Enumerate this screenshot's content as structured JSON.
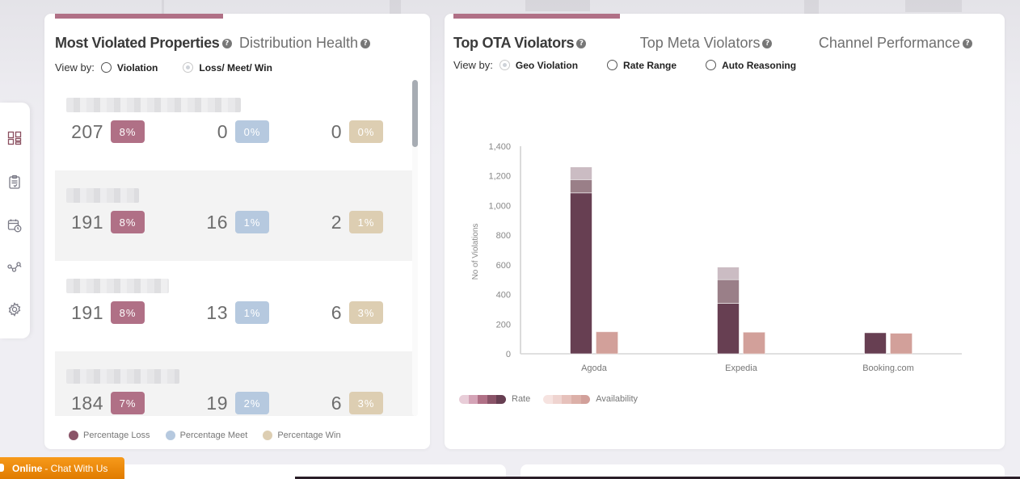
{
  "sidebar": {
    "items": [
      {
        "icon": "dashboard-icon",
        "active": true
      },
      {
        "icon": "clipboard-icon",
        "active": false
      },
      {
        "icon": "calendar-clock-icon",
        "active": false
      },
      {
        "icon": "workflow-icon",
        "active": false
      },
      {
        "icon": "gear-icon",
        "active": false
      }
    ]
  },
  "left_card": {
    "tabs": [
      {
        "label": "Most Violated Properties",
        "active": true,
        "help": "?"
      },
      {
        "label": "Distribution Health",
        "active": false,
        "help": "?"
      }
    ],
    "view_by": {
      "label": "View by:",
      "options": [
        {
          "label": "Violation",
          "checked": false
        },
        {
          "label": "Loss/ Meet/ Win",
          "checked": true
        }
      ]
    },
    "properties": [
      {
        "name": "",
        "loss": {
          "value": "207",
          "pct": "8%"
        },
        "meet": {
          "value": "0",
          "pct": "0%"
        },
        "win": {
          "value": "0",
          "pct": "0%"
        }
      },
      {
        "name": "",
        "loss": {
          "value": "191",
          "pct": "8%"
        },
        "meet": {
          "value": "16",
          "pct": "1%"
        },
        "win": {
          "value": "2",
          "pct": "1%"
        }
      },
      {
        "name": "",
        "loss": {
          "value": "191",
          "pct": "8%"
        },
        "meet": {
          "value": "13",
          "pct": "1%"
        },
        "win": {
          "value": "6",
          "pct": "3%"
        }
      },
      {
        "name": "",
        "loss": {
          "value": "184",
          "pct": "7%"
        },
        "meet": {
          "value": "19",
          "pct": "2%"
        },
        "win": {
          "value": "6",
          "pct": "3%"
        }
      }
    ],
    "legend": [
      {
        "label": "Percentage Loss",
        "color": "#8a5468"
      },
      {
        "label": "Percentage Meet",
        "color": "#b6c9df"
      },
      {
        "label": "Percentage Win",
        "color": "#ddceb2"
      }
    ]
  },
  "right_card": {
    "tabs": [
      {
        "label": "Top OTA Violators",
        "active": true,
        "help": "?"
      },
      {
        "label": "Top Meta Violators",
        "active": false,
        "help": "?"
      },
      {
        "label": "Channel Performance",
        "active": false,
        "help": "?"
      }
    ],
    "view_by": {
      "label": "View by:",
      "options": [
        {
          "label": "Geo Violation",
          "checked": true
        },
        {
          "label": "Rate Range",
          "checked": false
        },
        {
          "label": "Auto Reasoning",
          "checked": false
        }
      ]
    },
    "legend": [
      {
        "label": "Rate",
        "colors": [
          "#e8cdd8",
          "#d4a3b6",
          "#b07086",
          "#8a5468",
          "#673f52"
        ]
      },
      {
        "label": "Availability",
        "colors": [
          "#f6e3e0",
          "#efd4d0",
          "#e6c1bb",
          "#dcb0a8",
          "#d2a09a"
        ]
      }
    ]
  },
  "chart_data": {
    "type": "bar",
    "title": "",
    "xlabel": "",
    "ylabel": "No of Violations",
    "ylim": [
      0,
      1400
    ],
    "yticks": [
      0,
      200,
      400,
      600,
      800,
      1000,
      1200,
      1400
    ],
    "ytick_labels": [
      "0",
      "200",
      "400",
      "600",
      "800",
      "1,000",
      "1,200",
      "1,400"
    ],
    "categories": [
      "Agoda",
      "Expedia",
      "Booking.com"
    ],
    "grid": false,
    "legend_position": "bottom-left",
    "series": [
      {
        "name": "Rate",
        "stack": "rate",
        "segment": "level-1",
        "color": "#673f52",
        "values": [
          1085,
          340,
          142
        ]
      },
      {
        "name": "Rate",
        "stack": "rate",
        "segment": "level-2",
        "color": "#9a7f88",
        "values": [
          90,
          160,
          0
        ]
      },
      {
        "name": "Rate",
        "stack": "rate",
        "segment": "level-3",
        "color": "#cbbcc3",
        "values": [
          85,
          85,
          0
        ]
      },
      {
        "name": "Availability",
        "stack": "availability",
        "segment": "level-1",
        "color": "#d2a09a",
        "values": [
          148,
          145,
          138
        ]
      }
    ]
  },
  "chat": {
    "status": "Online",
    "label": " - Chat With Us"
  }
}
